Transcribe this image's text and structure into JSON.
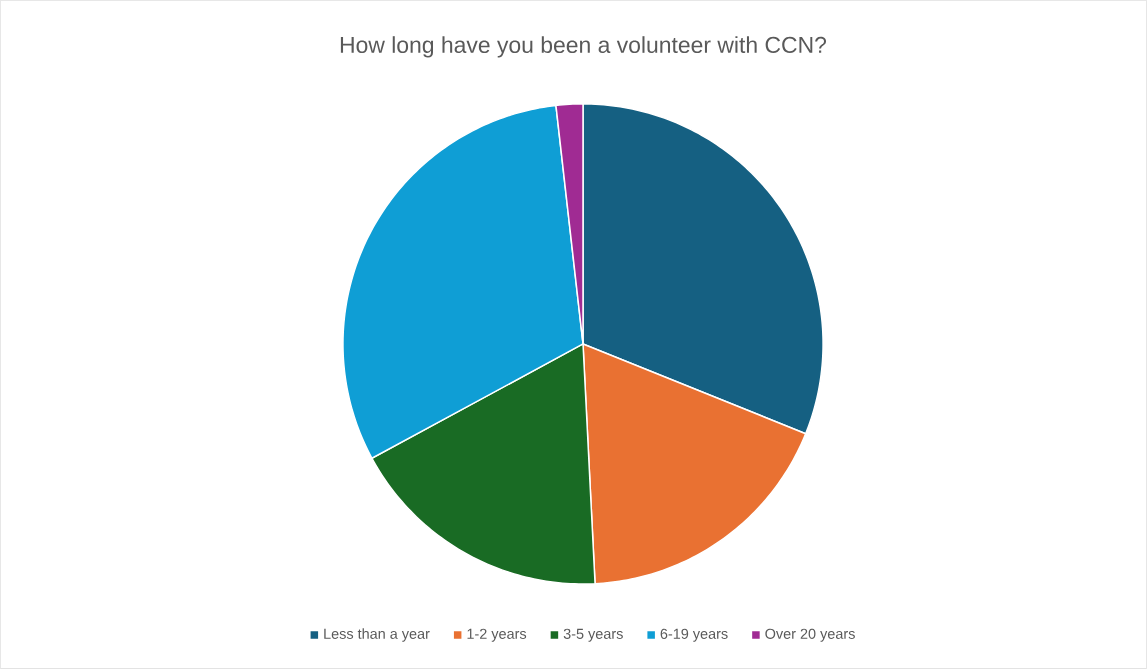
{
  "chart_data": {
    "type": "pie",
    "title": "How long have you been a volunteer with CCN?",
    "categories": [
      "Less than a year",
      "1-2 years",
      "3-5 years",
      "6-19 years",
      "Over 20 years"
    ],
    "values": [
      31.1,
      18.1,
      17.9,
      31.1,
      1.8
    ],
    "colors": [
      "#156082",
      "#e97132",
      "#196b24",
      "#0f9ed5",
      "#a02b93"
    ],
    "legend": "bottom"
  }
}
